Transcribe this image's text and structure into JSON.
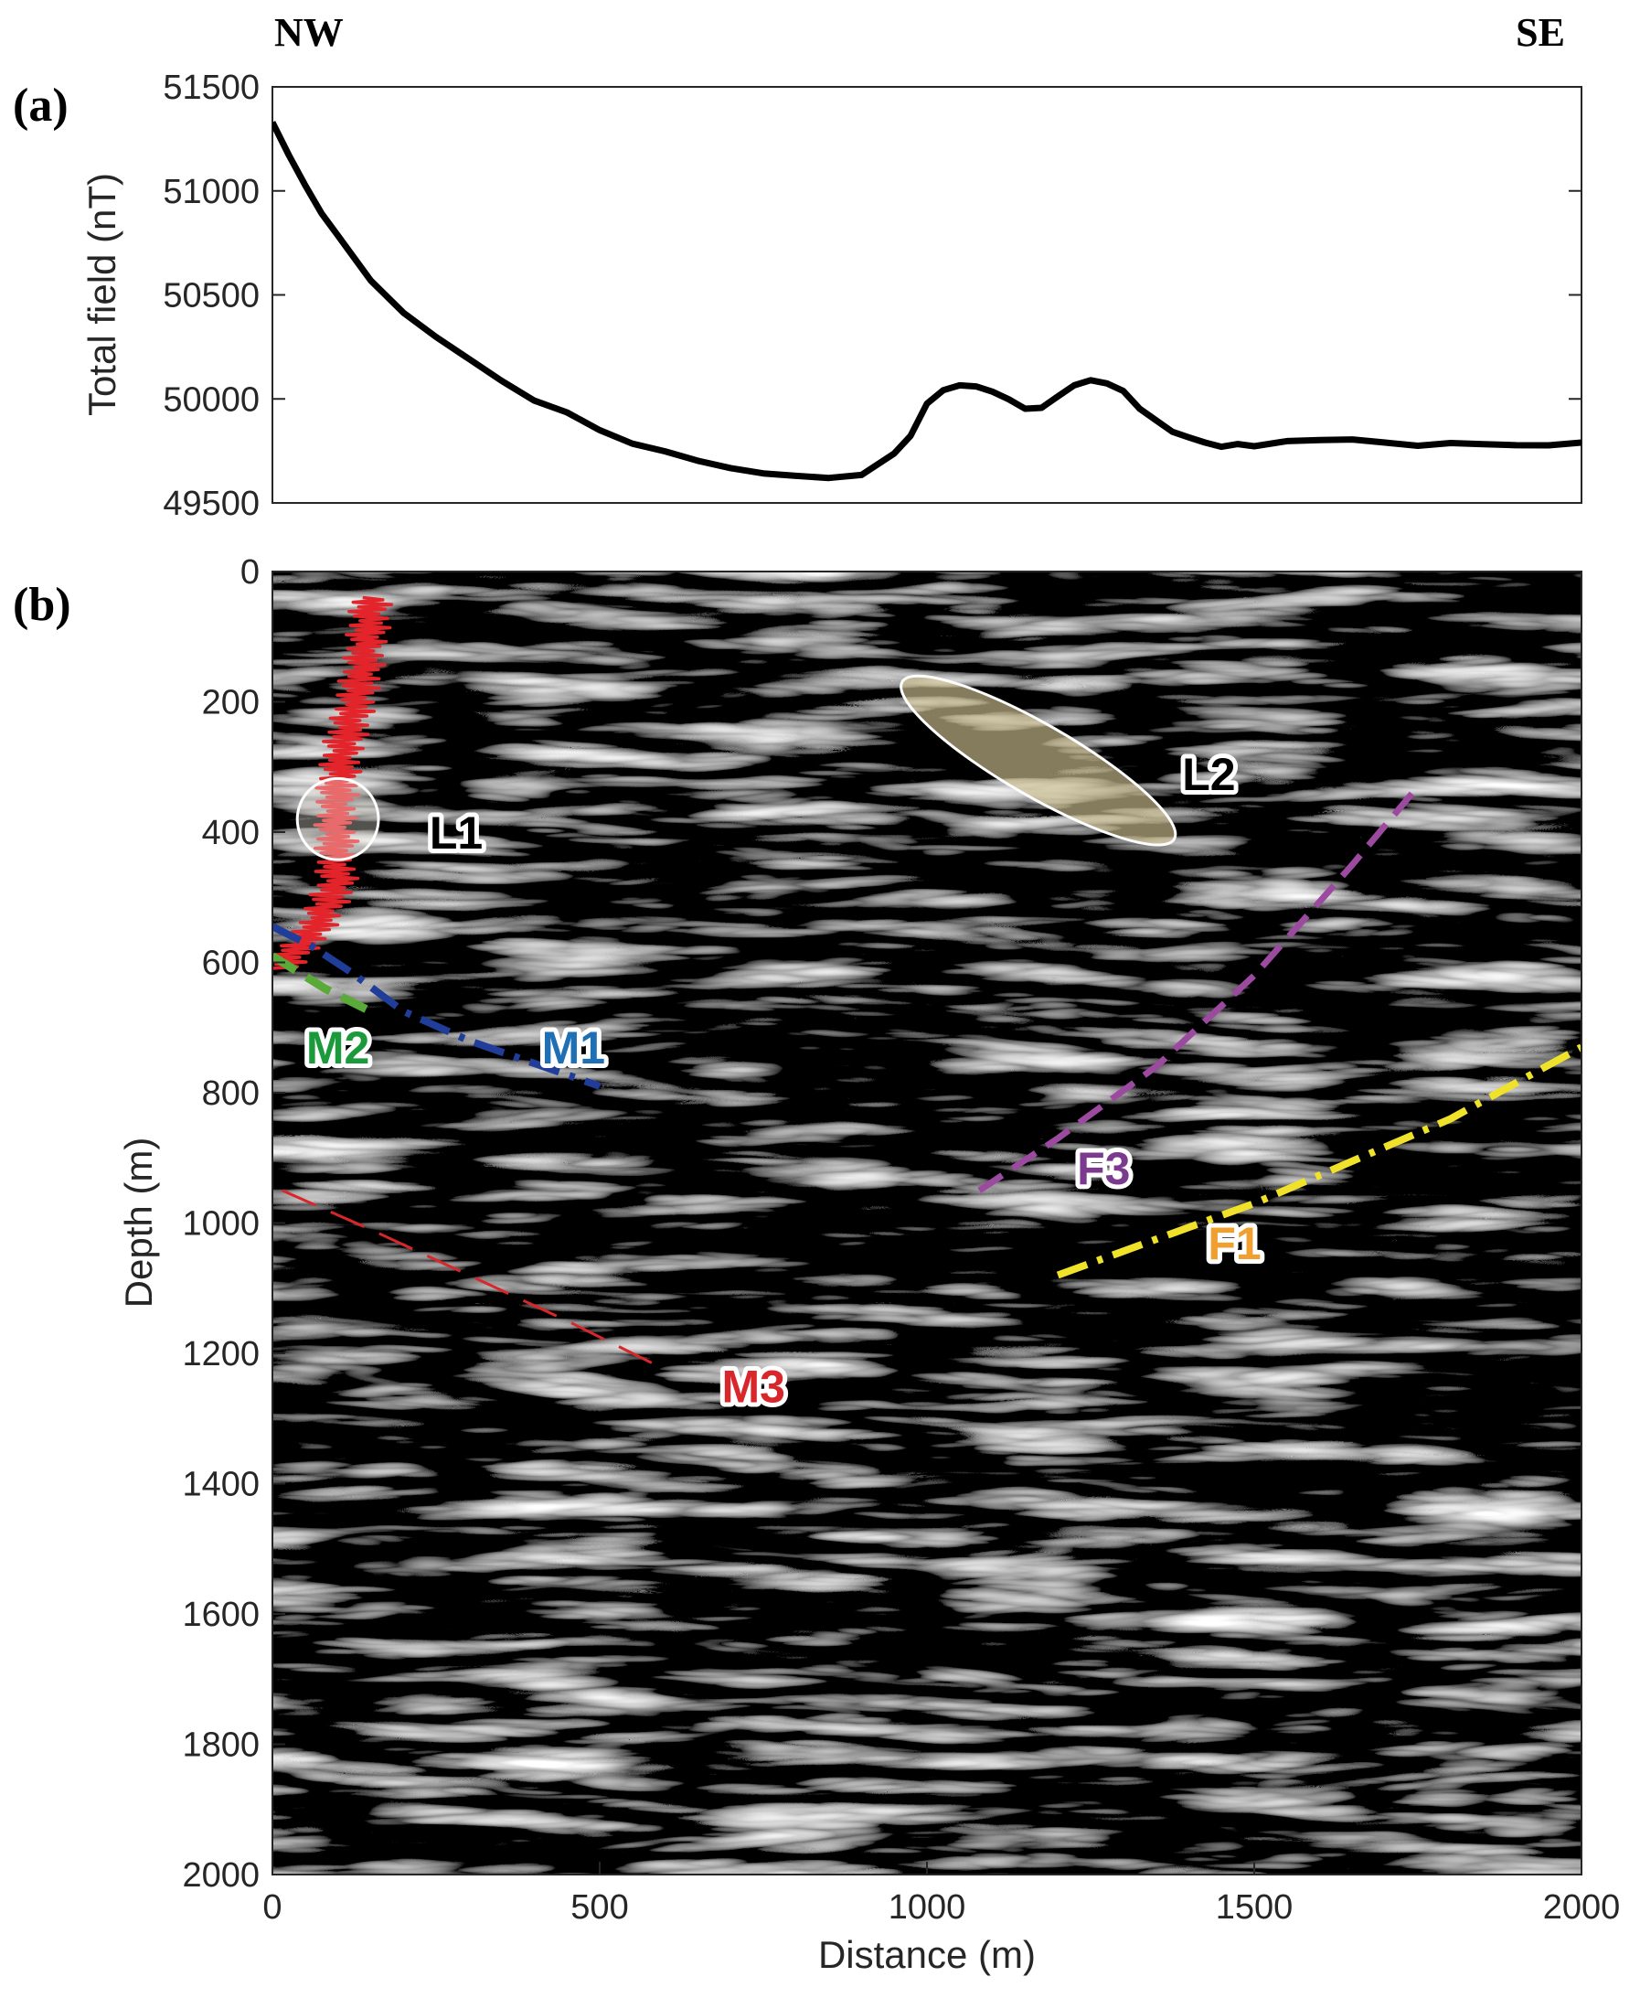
{
  "orientation": {
    "left": "NW",
    "right": "SE"
  },
  "chart_data": [
    {
      "panel_label": "(a)",
      "type": "line",
      "title": "",
      "xlabel": "",
      "ylabel": "Total field (nT)",
      "xlim": [
        0,
        2000
      ],
      "ylim": [
        49500,
        51500
      ],
      "yticks": [
        49500,
        50000,
        50500,
        51000,
        51500
      ],
      "ytick_labels": [
        "49500",
        "50000",
        "50500",
        "51000",
        "51500"
      ],
      "grid": false,
      "color": "#000000",
      "series": [
        {
          "x": [
            0,
            25,
            50,
            75,
            100,
            150,
            200,
            250,
            300,
            350,
            400,
            450,
            500,
            550,
            600,
            650,
            700,
            750,
            800,
            850,
            900,
            950,
            975,
            1000,
            1025,
            1050,
            1075,
            1100,
            1125,
            1150,
            1175,
            1200,
            1225,
            1250,
            1275,
            1300,
            1325,
            1350,
            1375,
            1400,
            1425,
            1450,
            1475,
            1500,
            1550,
            1600,
            1650,
            1700,
            1750,
            1800,
            1850,
            1900,
            1950,
            2000
          ],
          "y": [
            51330,
            51170,
            51030,
            50900,
            50780,
            50570,
            50420,
            50290,
            50190,
            50090,
            50000,
            49930,
            49850,
            49790,
            49740,
            49700,
            49670,
            49650,
            49625,
            49620,
            49640,
            49730,
            49820,
            49980,
            50050,
            50060,
            50060,
            50040,
            49990,
            49950,
            49960,
            50020,
            50060,
            50090,
            50080,
            50030,
            49950,
            49900,
            49850,
            49810,
            49790,
            49775,
            49775,
            49770,
            49800,
            49810,
            49800,
            49790,
            49780,
            49780,
            49780,
            49780,
            49785,
            49790
          ]
        }
      ]
    },
    {
      "panel_label": "(b)",
      "type": "heatmap",
      "title": "",
      "xlabel": "Distance (m)",
      "ylabel": "Depth (m)",
      "xlim": [
        0,
        2000
      ],
      "ylim": [
        2000,
        0
      ],
      "xticks": [
        0,
        500,
        1000,
        1500,
        2000
      ],
      "xtick_labels": [
        "0",
        "500",
        "1000",
        "1500",
        "2000"
      ],
      "yticks": [
        0,
        200,
        400,
        600,
        800,
        1000,
        1200,
        1400,
        1600,
        1800,
        2000
      ],
      "ytick_labels": [
        "0",
        "200",
        "400",
        "600",
        "800",
        "1000",
        "1200",
        "1400",
        "1600",
        "1800",
        "2000"
      ],
      "colormap": "grayscale seismic amplitude",
      "interpretations": [
        {
          "label": "M1",
          "color": "#1f3d99",
          "label_color": "#1f6fb5",
          "style": "dash-dot",
          "x": [
            0,
            60,
            120,
            200,
            300,
            400,
            500
          ],
          "y": [
            545,
            575,
            615,
            675,
            720,
            755,
            790
          ],
          "label_at": [
            460,
            730
          ]
        },
        {
          "label": "M2",
          "color": "#5aaa3a",
          "label_color": "#1a9a3a",
          "style": "dashed",
          "x": [
            0,
            40,
            80,
            120,
            160
          ],
          "y": [
            590,
            615,
            640,
            660,
            680
          ],
          "label_at": [
            100,
            730
          ]
        },
        {
          "label": "M3",
          "color": "#d9262b",
          "label_color": "#d9262b",
          "style": "long-dash",
          "x": [
            15,
            150,
            300,
            450,
            600
          ],
          "y": [
            950,
            1010,
            1080,
            1150,
            1225
          ],
          "label_at": [
            735,
            1250
          ]
        },
        {
          "label": "F1",
          "color": "#f0e22a",
          "label_color": "#f0a030",
          "style": "dash-dot",
          "x": [
            1200,
            1500,
            1800,
            2000
          ],
          "y": [
            1080,
            970,
            840,
            730
          ],
          "label_at": [
            1470,
            1030
          ]
        },
        {
          "label": "F3",
          "color": "#9b4aa0",
          "label_color": "#7b3a8e",
          "style": "dashed",
          "x": [
            1080,
            1200,
            1350,
            1500,
            1650,
            1750
          ],
          "y": [
            950,
            870,
            760,
            620,
            450,
            330
          ],
          "label_at": [
            1270,
            915
          ]
        }
      ],
      "anomalies": [
        {
          "label": "L1",
          "shape": "circle",
          "cx": 100,
          "cy": 380,
          "r_m": 62,
          "label_at": [
            240,
            400
          ]
        },
        {
          "label": "L2",
          "shape": "ellipse",
          "cx": 1170,
          "cy": 290,
          "rx_m": 240,
          "ry_m": 55,
          "angle_deg": 30,
          "label_at": [
            1390,
            310
          ]
        }
      ],
      "well_log": {
        "color": "#e3252b",
        "x_base": [
          150,
          140,
          110,
          95,
          100,
          60,
          30,
          15
        ],
        "y": [
          40,
          150,
          260,
          380,
          480,
          555,
          585,
          610
        ]
      }
    }
  ]
}
